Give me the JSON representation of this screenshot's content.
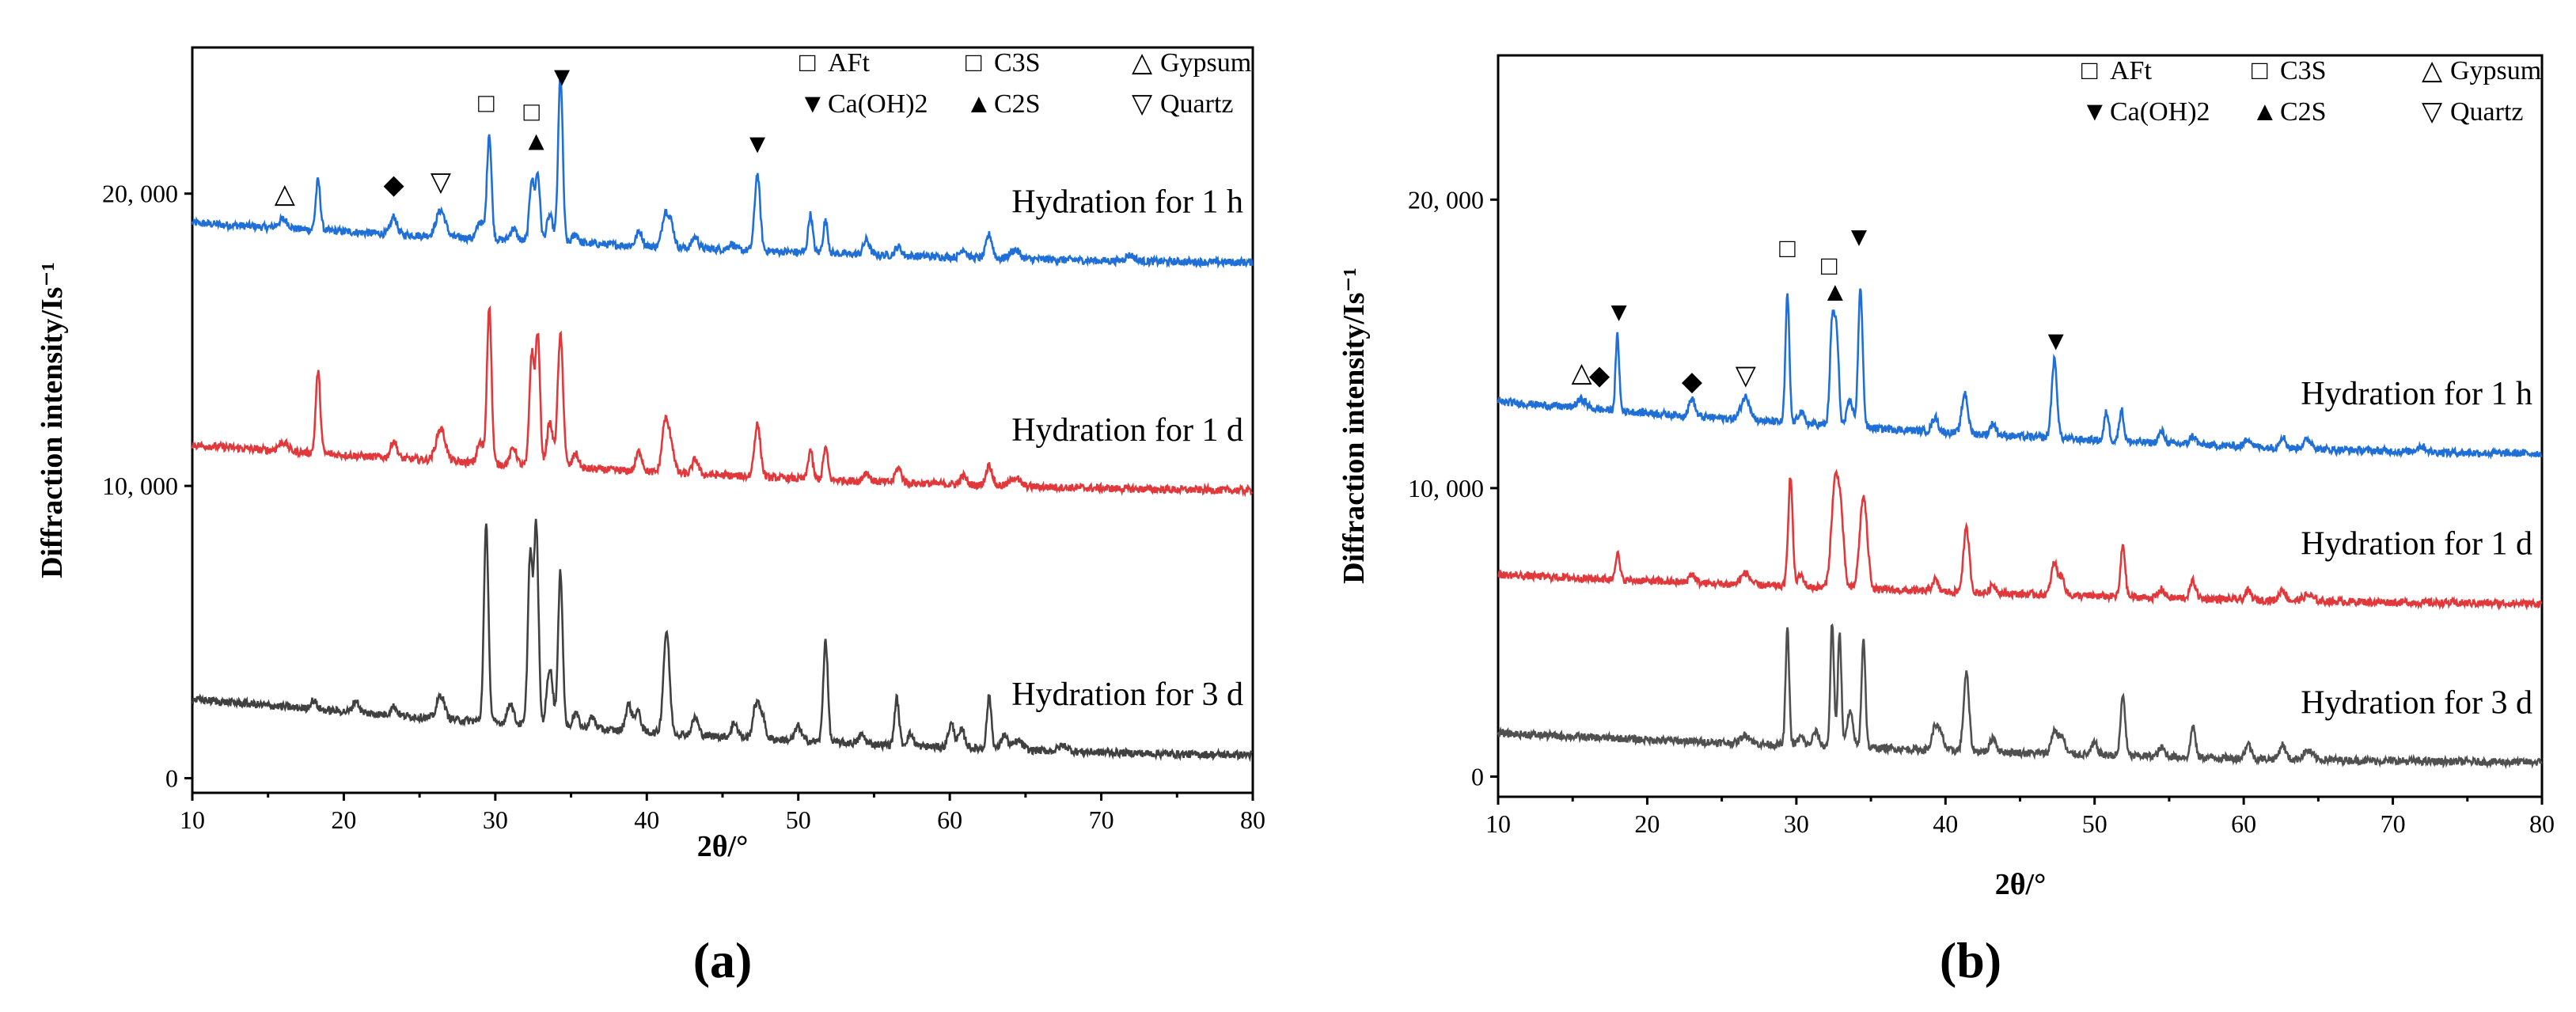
{
  "chart_data": [
    {
      "type": "line",
      "panel": "(a)",
      "xlabel": "2θ/°",
      "ylabel": "Diffraction intensity/Is⁻¹",
      "xlim": [
        10,
        80
      ],
      "ylim": [
        -500,
        25000
      ],
      "x_ticks": [
        10,
        20,
        30,
        40,
        50,
        60,
        70,
        80
      ],
      "y_ticks": [
        {
          "value": 0,
          "label": "0"
        },
        {
          "value": 10000,
          "label": "10, 000"
        },
        {
          "value": 20000,
          "label": "20, 000"
        }
      ],
      "grid": false,
      "legend": {
        "placement": "top-right",
        "entries": [
          {
            "symbol": "□",
            "label": "AFt"
          },
          {
            "symbol": "□",
            "label": "C3S"
          },
          {
            "symbol": "△",
            "label": "Gypsum"
          },
          {
            "symbol": "▼",
            "label": "Ca(OH)2"
          },
          {
            "symbol": "▲",
            "label": "C2S"
          },
          {
            "symbol": "▽",
            "label": "Quartz"
          }
        ]
      },
      "series": [
        {
          "name": "Hydration for 1 h",
          "color": "#1f6fd6",
          "baseline_start": 19000,
          "baseline_end": 17650,
          "peaks": [
            [
              16.0,
              300,
              0.3
            ],
            [
              18.3,
              1700,
              0.15
            ],
            [
              23.3,
              600,
              0.2
            ],
            [
              26.4,
              900,
              0.3
            ],
            [
              29.0,
              600,
              0.2
            ],
            [
              29.6,
              3600,
              0.15
            ],
            [
              31.2,
              400,
              0.2
            ],
            [
              32.4,
              2100,
              0.15
            ],
            [
              32.8,
              2300,
              0.15
            ],
            [
              33.6,
              900,
              0.2
            ],
            [
              34.3,
              5700,
              0.15
            ],
            [
              35.3,
              300,
              0.2
            ],
            [
              39.5,
              500,
              0.2
            ],
            [
              41.2,
              1100,
              0.2
            ],
            [
              41.6,
              800,
              0.2
            ],
            [
              43.2,
              400,
              0.2
            ],
            [
              45.6,
              200,
              0.2
            ],
            [
              47.3,
              2600,
              0.18
            ],
            [
              50.8,
              1300,
              0.15
            ],
            [
              51.8,
              1100,
              0.15
            ],
            [
              54.5,
              500,
              0.2
            ],
            [
              56.6,
              300,
              0.2
            ],
            [
              60.9,
              300,
              0.2
            ],
            [
              62.6,
              800,
              0.2
            ],
            [
              64.3,
              300,
              0.3
            ],
            [
              71.9,
              200,
              0.3
            ]
          ]
        },
        {
          "name": "Hydration for 1 d",
          "color": "#e0383b",
          "baseline_start": 11400,
          "baseline_end": 9850,
          "peaks": [
            [
              16.0,
              300,
              0.3
            ],
            [
              18.3,
              2800,
              0.15
            ],
            [
              23.3,
              600,
              0.2
            ],
            [
              26.4,
              1100,
              0.3
            ],
            [
              29.0,
              700,
              0.2
            ],
            [
              29.6,
              5400,
              0.15
            ],
            [
              31.2,
              600,
              0.2
            ],
            [
              32.4,
              3800,
              0.15
            ],
            [
              32.8,
              4500,
              0.15
            ],
            [
              33.6,
              1500,
              0.2
            ],
            [
              34.3,
              4500,
              0.18
            ],
            [
              35.3,
              500,
              0.2
            ],
            [
              39.5,
              700,
              0.2
            ],
            [
              41.2,
              1700,
              0.2
            ],
            [
              41.6,
              1000,
              0.2
            ],
            [
              43.2,
              500,
              0.2
            ],
            [
              47.3,
              1800,
              0.2
            ],
            [
              50.8,
              1000,
              0.15
            ],
            [
              51.8,
              1100,
              0.15
            ],
            [
              54.5,
              300,
              0.2
            ],
            [
              56.6,
              500,
              0.2
            ],
            [
              60.9,
              300,
              0.2
            ],
            [
              62.6,
              700,
              0.2
            ],
            [
              64.3,
              300,
              0.3
            ]
          ]
        },
        {
          "name": "Hydration for 3 d",
          "color": "#404040",
          "baseline_start": 2700,
          "baseline_end": 800,
          "peaks": [
            [
              18.0,
              300,
              0.2
            ],
            [
              20.8,
              400,
              0.2
            ],
            [
              23.3,
              300,
              0.2
            ],
            [
              26.4,
              800,
              0.25
            ],
            [
              29.4,
              6700,
              0.15
            ],
            [
              31.0,
              700,
              0.2
            ],
            [
              32.3,
              5800,
              0.15
            ],
            [
              32.7,
              6800,
              0.15
            ],
            [
              33.6,
              2000,
              0.2
            ],
            [
              34.3,
              5300,
              0.15
            ],
            [
              35.3,
              500,
              0.2
            ],
            [
              36.4,
              400,
              0.2
            ],
            [
              38.8,
              900,
              0.2
            ],
            [
              39.4,
              700,
              0.2
            ],
            [
              41.3,
              3500,
              0.2
            ],
            [
              43.2,
              600,
              0.2
            ],
            [
              45.8,
              500,
              0.2
            ],
            [
              47.2,
              1100,
              0.2
            ],
            [
              47.6,
              800,
              0.2
            ],
            [
              50.0,
              500,
              0.2
            ],
            [
              51.8,
              3500,
              0.15
            ],
            [
              54.2,
              300,
              0.2
            ],
            [
              56.5,
              1600,
              0.15
            ],
            [
              57.4,
              400,
              0.2
            ],
            [
              60.1,
              800,
              0.2
            ],
            [
              60.8,
              600,
              0.2
            ],
            [
              62.6,
              1800,
              0.15
            ],
            [
              63.6,
              500,
              0.2
            ],
            [
              64.5,
              300,
              0.3
            ],
            [
              67.5,
              200,
              0.3
            ]
          ]
        }
      ],
      "markers": [
        {
          "symbol": "△",
          "x": 16.1,
          "y": 19700
        },
        {
          "symbol": "◆",
          "x": 23.3,
          "y": 20000
        },
        {
          "symbol": "▽",
          "x": 26.4,
          "y": 20100
        },
        {
          "symbol": "□",
          "x": 29.4,
          "y": 22800
        },
        {
          "symbol": "□",
          "x": 32.4,
          "y": 22500
        },
        {
          "symbol": "▲",
          "x": 32.7,
          "y": 21500
        },
        {
          "symbol": "▼",
          "x": 34.4,
          "y": 23700
        },
        {
          "symbol": "▼",
          "x": 47.3,
          "y": 21400
        }
      ]
    },
    {
      "type": "line",
      "panel": "(b)",
      "xlabel": "2θ/°",
      "ylabel": "Diffraction intensity/Is⁻¹",
      "xlim": [
        10,
        80
      ],
      "ylim": [
        -700,
        25000
      ],
      "x_ticks": [
        10,
        20,
        30,
        40,
        50,
        60,
        70,
        80
      ],
      "y_ticks": [
        {
          "value": 0,
          "label": "0"
        },
        {
          "value": 10000,
          "label": "10, 000"
        },
        {
          "value": 20000,
          "label": "20, 000"
        }
      ],
      "grid": false,
      "legend": {
        "placement": "top-right",
        "entries": [
          {
            "symbol": "□",
            "label": "AFt"
          },
          {
            "symbol": "□",
            "label": "C3S"
          },
          {
            "symbol": "△",
            "label": "Gypsum"
          },
          {
            "symbol": "▼",
            "label": "Ca(OH)2"
          },
          {
            "symbol": "▲",
            "label": "C2S"
          },
          {
            "symbol": "▽",
            "label": "Quartz"
          }
        ]
      },
      "series": [
        {
          "name": "Hydration for 1 h",
          "color": "#1f6fd6",
          "baseline_start": 13000,
          "baseline_end": 11200,
          "peaks": [
            [
              15.6,
              300,
              0.3
            ],
            [
              18.0,
              2600,
              0.12
            ],
            [
              23.0,
              600,
              0.2
            ],
            [
              26.6,
              800,
              0.3
            ],
            [
              29.4,
              4400,
              0.13
            ],
            [
              30.3,
              400,
              0.2
            ],
            [
              32.4,
              3400,
              0.15
            ],
            [
              32.7,
              3000,
              0.15
            ],
            [
              33.6,
              900,
              0.2
            ],
            [
              34.3,
              4800,
              0.15
            ],
            [
              39.3,
              500,
              0.2
            ],
            [
              41.3,
              1400,
              0.2
            ],
            [
              43.2,
              400,
              0.2
            ],
            [
              47.3,
              2700,
              0.18
            ],
            [
              50.8,
              1000,
              0.15
            ],
            [
              51.8,
              1100,
              0.15
            ],
            [
              54.5,
              400,
              0.2
            ],
            [
              56.6,
              300,
              0.2
            ],
            [
              60.3,
              300,
              0.2
            ],
            [
              62.6,
              400,
              0.2
            ],
            [
              64.3,
              300,
              0.3
            ],
            [
              71.9,
              200,
              0.3
            ]
          ]
        },
        {
          "name": "Hydration for 1 d",
          "color": "#e0383b",
          "baseline_start": 7000,
          "baseline_end": 6000,
          "peaks": [
            [
              18.0,
              900,
              0.15
            ],
            [
              23.0,
              300,
              0.2
            ],
            [
              26.6,
              400,
              0.3
            ],
            [
              29.6,
              3800,
              0.15
            ],
            [
              30.3,
              400,
              0.2
            ],
            [
              32.6,
              3600,
              0.25
            ],
            [
              33.0,
              2000,
              0.2
            ],
            [
              34.5,
              3200,
              0.25
            ],
            [
              39.3,
              400,
              0.2
            ],
            [
              41.4,
              2200,
              0.2
            ],
            [
              43.2,
              300,
              0.2
            ],
            [
              47.3,
              1100,
              0.2
            ],
            [
              47.8,
              600,
              0.2
            ],
            [
              51.9,
              1800,
              0.15
            ],
            [
              54.5,
              300,
              0.2
            ],
            [
              56.6,
              600,
              0.2
            ],
            [
              60.3,
              300,
              0.2
            ],
            [
              62.6,
              400,
              0.2
            ],
            [
              64.3,
              200,
              0.3
            ]
          ]
        },
        {
          "name": "Hydration for 3 d",
          "color": "#505050",
          "baseline_start": 1500,
          "baseline_end": 500,
          "peaks": [
            [
              26.6,
              300,
              0.3
            ],
            [
              29.4,
              4000,
              0.12
            ],
            [
              30.3,
              300,
              0.2
            ],
            [
              31.3,
              500,
              0.2
            ],
            [
              32.4,
              4300,
              0.12
            ],
            [
              32.9,
              4000,
              0.12
            ],
            [
              33.6,
              1200,
              0.2
            ],
            [
              34.5,
              3800,
              0.13
            ],
            [
              39.3,
              800,
              0.2
            ],
            [
              39.7,
              500,
              0.2
            ],
            [
              41.4,
              2700,
              0.18
            ],
            [
              43.2,
              500,
              0.2
            ],
            [
              47.3,
              800,
              0.2
            ],
            [
              47.8,
              600,
              0.2
            ],
            [
              50.0,
              400,
              0.2
            ],
            [
              51.9,
              2100,
              0.15
            ],
            [
              54.5,
              300,
              0.2
            ],
            [
              56.6,
              1100,
              0.15
            ],
            [
              60.3,
              500,
              0.2
            ],
            [
              62.6,
              500,
              0.2
            ],
            [
              64.3,
              300,
              0.3
            ]
          ]
        }
      ],
      "markers": [
        {
          "symbol": "△",
          "x": 15.6,
          "y": 13700
        },
        {
          "symbol": "◆",
          "x": 16.8,
          "y": 13600
        },
        {
          "symbol": "▼",
          "x": 18.1,
          "y": 15800
        },
        {
          "symbol": "◆",
          "x": 23.0,
          "y": 13400
        },
        {
          "symbol": "▽",
          "x": 26.6,
          "y": 13600
        },
        {
          "symbol": "□",
          "x": 29.4,
          "y": 18000
        },
        {
          "symbol": "□",
          "x": 32.2,
          "y": 17400
        },
        {
          "symbol": "▲",
          "x": 32.6,
          "y": 16500
        },
        {
          "symbol": "▼",
          "x": 34.2,
          "y": 18400
        },
        {
          "symbol": "▼",
          "x": 47.4,
          "y": 14800
        }
      ]
    }
  ]
}
